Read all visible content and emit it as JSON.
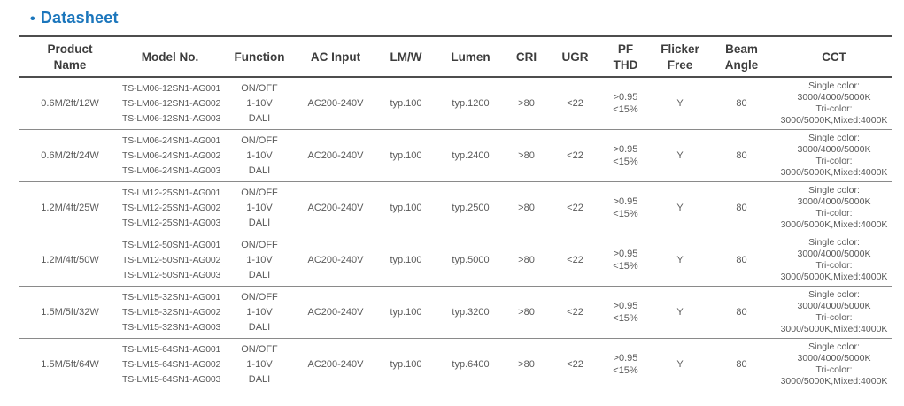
{
  "title": {
    "bullet": "•",
    "text": "Datasheet"
  },
  "colors": {
    "accent": "#1b76bc",
    "header_text": "#3d3d3d",
    "body_text": "#595959",
    "border_dark": "#4d4d4d",
    "border_light": "#8a8a8a"
  },
  "table": {
    "headers": [
      {
        "id": "product-name",
        "lines": [
          "Product",
          "Name"
        ]
      },
      {
        "id": "model-no",
        "lines": [
          "Model  No."
        ]
      },
      {
        "id": "function",
        "lines": [
          "Function"
        ]
      },
      {
        "id": "ac-input",
        "lines": [
          "AC Input"
        ]
      },
      {
        "id": "lm-w",
        "lines": [
          "LM/W"
        ]
      },
      {
        "id": "lumen",
        "lines": [
          "Lumen"
        ]
      },
      {
        "id": "cri",
        "lines": [
          "CRI"
        ]
      },
      {
        "id": "ugr",
        "lines": [
          "UGR"
        ]
      },
      {
        "id": "pf-thd",
        "lines": [
          "PF",
          "THD"
        ]
      },
      {
        "id": "flicker-free",
        "lines": [
          "Flicker",
          "Free"
        ]
      },
      {
        "id": "beam-angle",
        "lines": [
          "Beam",
          "Angle"
        ]
      },
      {
        "id": "cct",
        "lines": [
          "CCT"
        ]
      }
    ],
    "rows": [
      {
        "product": "0.6M/2ft/12W",
        "models": [
          "TS-LM06-12SN1-AG001",
          "TS-LM06-12SN1-AG002",
          "TS-LM06-12SN1-AG003"
        ],
        "functions": [
          "ON/OFF",
          "1-10V",
          "DALI"
        ],
        "ac_input": "AC200-240V",
        "lm_w": "typ.100",
        "lumen": "typ.1200",
        "cri": ">80",
        "ugr": "<22",
        "pf_thd": [
          ">0.95",
          "<15%"
        ],
        "flicker_free": "Y",
        "beam_angle": "80",
        "cct": [
          "Single color:",
          "3000/4000/5000K",
          "Tri-color:",
          "3000/5000K,Mixed:4000K"
        ]
      },
      {
        "product": "0.6M/2ft/24W",
        "models": [
          "TS-LM06-24SN1-AG001",
          "TS-LM06-24SN1-AG002",
          "TS-LM06-24SN1-AG003"
        ],
        "functions": [
          "ON/OFF",
          "1-10V",
          "DALI"
        ],
        "ac_input": "AC200-240V",
        "lm_w": "typ.100",
        "lumen": "typ.2400",
        "cri": ">80",
        "ugr": "<22",
        "pf_thd": [
          ">0.95",
          "<15%"
        ],
        "flicker_free": "Y",
        "beam_angle": "80",
        "cct": [
          "Single color:",
          "3000/4000/5000K",
          "Tri-color:",
          "3000/5000K,Mixed:4000K"
        ]
      },
      {
        "product": "1.2M/4ft/25W",
        "models": [
          "TS-LM12-25SN1-AG001",
          "TS-LM12-25SN1-AG002",
          "TS-LM12-25SN1-AG003"
        ],
        "functions": [
          "ON/OFF",
          "1-10V",
          "DALI"
        ],
        "ac_input": "AC200-240V",
        "lm_w": "typ.100",
        "lumen": "typ.2500",
        "cri": ">80",
        "ugr": "<22",
        "pf_thd": [
          ">0.95",
          "<15%"
        ],
        "flicker_free": "Y",
        "beam_angle": "80",
        "cct": [
          "Single color:",
          "3000/4000/5000K",
          "Tri-color:",
          "3000/5000K,Mixed:4000K"
        ]
      },
      {
        "product": "1.2M/4ft/50W",
        "models": [
          "TS-LM12-50SN1-AG001",
          "TS-LM12-50SN1-AG002",
          "TS-LM12-50SN1-AG003"
        ],
        "functions": [
          "ON/OFF",
          "1-10V",
          "DALI"
        ],
        "ac_input": "AC200-240V",
        "lm_w": "typ.100",
        "lumen": "typ.5000",
        "cri": ">80",
        "ugr": "<22",
        "pf_thd": [
          ">0.95",
          "<15%"
        ],
        "flicker_free": "Y",
        "beam_angle": "80",
        "cct": [
          "Single color:",
          "3000/4000/5000K",
          "Tri-color:",
          "3000/5000K,Mixed:4000K"
        ]
      },
      {
        "product": "1.5M/5ft/32W",
        "models": [
          "TS-LM15-32SN1-AG001",
          "TS-LM15-32SN1-AG002",
          "TS-LM15-32SN1-AG003"
        ],
        "functions": [
          "ON/OFF",
          "1-10V",
          "DALI"
        ],
        "ac_input": "AC200-240V",
        "lm_w": "typ.100",
        "lumen": "typ.3200",
        "cri": ">80",
        "ugr": "<22",
        "pf_thd": [
          ">0.95",
          "<15%"
        ],
        "flicker_free": "Y",
        "beam_angle": "80",
        "cct": [
          "Single color:",
          "3000/4000/5000K",
          "Tri-color:",
          "3000/5000K,Mixed:4000K"
        ]
      },
      {
        "product": "1.5M/5ft/64W",
        "models": [
          "TS-LM15-64SN1-AG001",
          "TS-LM15-64SN1-AG002",
          "TS-LM15-64SN1-AG003"
        ],
        "functions": [
          "ON/OFF",
          "1-10V",
          "DALI"
        ],
        "ac_input": "AC200-240V",
        "lm_w": "typ.100",
        "lumen": "typ.6400",
        "cri": ">80",
        "ugr": "<22",
        "pf_thd": [
          ">0.95",
          "<15%"
        ],
        "flicker_free": "Y",
        "beam_angle": "80",
        "cct": [
          "Single color:",
          "3000/4000/5000K",
          "Tri-color:",
          "3000/5000K,Mixed:4000K"
        ]
      }
    ]
  }
}
